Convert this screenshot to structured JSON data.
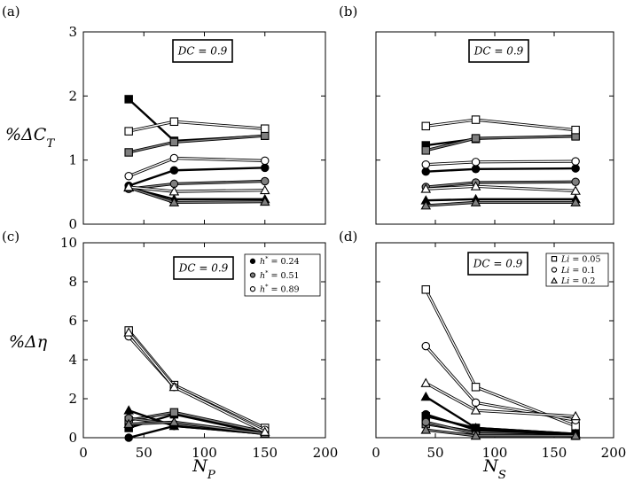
{
  "chart_data": [
    {
      "panel": "(a)",
      "type": "line",
      "annotation": "DC = 0.9",
      "ylabel": "%ΔC_T",
      "ylim": [
        0,
        3
      ],
      "yticks": [
        0,
        1,
        2,
        3
      ],
      "xlim": [
        0,
        200
      ],
      "xticks": [],
      "x": [
        37.5,
        75,
        150
      ],
      "series": [
        {
          "values": [
            1.95,
            1.3,
            1.38
          ],
          "marker": "square",
          "fill": "black"
        },
        {
          "values": [
            1.12,
            1.28,
            1.38
          ],
          "marker": "square",
          "fill": "gray"
        },
        {
          "values": [
            1.45,
            1.6,
            1.49
          ],
          "marker": "square",
          "fill": "white"
        },
        {
          "values": [
            0.6,
            0.84,
            0.88
          ],
          "marker": "circle",
          "fill": "black"
        },
        {
          "values": [
            0.55,
            0.63,
            0.67
          ],
          "marker": "circle",
          "fill": "gray"
        },
        {
          "values": [
            0.75,
            1.03,
            0.99
          ],
          "marker": "circle",
          "fill": "white"
        },
        {
          "values": [
            0.57,
            0.39,
            0.39
          ],
          "marker": "triangle",
          "fill": "black"
        },
        {
          "values": [
            0.57,
            0.34,
            0.35
          ],
          "marker": "triangle",
          "fill": "gray"
        },
        {
          "values": [
            0.58,
            0.51,
            0.53
          ],
          "marker": "triangle",
          "fill": "white"
        }
      ]
    },
    {
      "panel": "(b)",
      "type": "line",
      "annotation": "DC = 0.9",
      "ylabel": "",
      "ylim": [
        0,
        3
      ],
      "yticks": [],
      "xlim": [
        0,
        200
      ],
      "xticks": [],
      "x": [
        42,
        84,
        168
      ],
      "series": [
        {
          "values": [
            1.23,
            1.33,
            1.38
          ],
          "marker": "square",
          "fill": "black"
        },
        {
          "values": [
            1.15,
            1.34,
            1.37
          ],
          "marker": "square",
          "fill": "gray"
        },
        {
          "values": [
            1.53,
            1.63,
            1.47
          ],
          "marker": "square",
          "fill": "white"
        },
        {
          "values": [
            0.82,
            0.86,
            0.87
          ],
          "marker": "circle",
          "fill": "black"
        },
        {
          "values": [
            0.58,
            0.65,
            0.66
          ],
          "marker": "circle",
          "fill": "gray"
        },
        {
          "values": [
            0.93,
            0.97,
            0.98
          ],
          "marker": "circle",
          "fill": "white"
        },
        {
          "values": [
            0.37,
            0.39,
            0.39
          ],
          "marker": "triangle",
          "fill": "black"
        },
        {
          "values": [
            0.29,
            0.34,
            0.34
          ],
          "marker": "triangle",
          "fill": "gray"
        },
        {
          "values": [
            0.55,
            0.59,
            0.52
          ],
          "marker": "triangle",
          "fill": "white"
        }
      ]
    },
    {
      "panel": "(c)",
      "type": "line",
      "annotation": "DC = 0.9",
      "ylabel": "%Δη",
      "xlabel": "N_P",
      "ylim": [
        0,
        10
      ],
      "yticks": [
        0,
        2,
        4,
        6,
        8,
        10
      ],
      "xlim": [
        0,
        200
      ],
      "xticks": [
        0,
        50,
        100,
        150,
        200
      ],
      "x": [
        37.5,
        75,
        150
      ],
      "legend": {
        "position": "top-right",
        "entries": [
          {
            "label": "h* = 0.24",
            "marker": "circle",
            "fill": "black"
          },
          {
            "label": "h* = 0.51",
            "marker": "circle",
            "fill": "gray"
          },
          {
            "label": "h* = 0.89",
            "marker": "circle",
            "fill": "white"
          }
        ]
      },
      "series": [
        {
          "values": [
            0.5,
            1.2,
            0.2
          ],
          "marker": "square",
          "fill": "black"
        },
        {
          "values": [
            0.9,
            1.3,
            0.3
          ],
          "marker": "square",
          "fill": "gray"
        },
        {
          "values": [
            5.5,
            2.7,
            0.5
          ],
          "marker": "square",
          "fill": "white"
        },
        {
          "values": [
            0.0,
            0.6,
            0.2
          ],
          "marker": "circle",
          "fill": "black"
        },
        {
          "values": [
            1.0,
            0.7,
            0.2
          ],
          "marker": "circle",
          "fill": "gray"
        },
        {
          "values": [
            5.2,
            2.6,
            0.4
          ],
          "marker": "circle",
          "fill": "white"
        },
        {
          "values": [
            1.4,
            0.6,
            0.2
          ],
          "marker": "triangle",
          "fill": "black"
        },
        {
          "values": [
            0.7,
            0.8,
            0.2
          ],
          "marker": "triangle",
          "fill": "gray"
        },
        {
          "values": [
            5.4,
            2.6,
            0.3
          ],
          "marker": "triangle",
          "fill": "white"
        }
      ]
    },
    {
      "panel": "(d)",
      "type": "line",
      "annotation": "DC = 0.9",
      "xlabel": "N_S",
      "ylim": [
        0,
        10
      ],
      "yticks": [],
      "xlim": [
        0,
        200
      ],
      "xticks": [
        0,
        50,
        100,
        150,
        200
      ],
      "x": [
        42,
        84,
        168
      ],
      "legend": {
        "position": "top-right",
        "entries": [
          {
            "label": "Li = 0.05",
            "marker": "square",
            "fill": "white"
          },
          {
            "label": "Li = 0.1",
            "marker": "circle",
            "fill": "white"
          },
          {
            "label": "Li = 0.2",
            "marker": "triangle",
            "fill": "white"
          }
        ]
      },
      "series": [
        {
          "values": [
            1.1,
            0.5,
            0.2
          ],
          "marker": "square",
          "fill": "black"
        },
        {
          "values": [
            0.7,
            0.3,
            0.1
          ],
          "marker": "square",
          "fill": "gray"
        },
        {
          "values": [
            7.6,
            2.6,
            0.6
          ],
          "marker": "square",
          "fill": "white"
        },
        {
          "values": [
            1.2,
            0.4,
            0.2
          ],
          "marker": "circle",
          "fill": "black"
        },
        {
          "values": [
            0.8,
            0.2,
            0.1
          ],
          "marker": "circle",
          "fill": "gray"
        },
        {
          "values": [
            4.7,
            1.8,
            0.9
          ],
          "marker": "circle",
          "fill": "white"
        },
        {
          "values": [
            2.1,
            0.5,
            0.2
          ],
          "marker": "triangle",
          "fill": "black"
        },
        {
          "values": [
            0.4,
            0.1,
            0.1
          ],
          "marker": "triangle",
          "fill": "gray"
        },
        {
          "values": [
            2.8,
            1.4,
            1.1
          ],
          "marker": "triangle",
          "fill": "white"
        }
      ]
    }
  ]
}
